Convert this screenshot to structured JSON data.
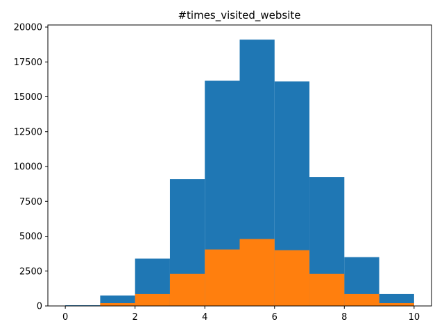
{
  "chart_data": {
    "type": "bar",
    "title": "#times_visited_website",
    "xlabel": "",
    "ylabel": "",
    "xlim": [
      -0.5,
      10.5
    ],
    "ylim": [
      0,
      20150
    ],
    "grid": false,
    "bin_edges": [
      0,
      1,
      2,
      3,
      4,
      5,
      6,
      7,
      8,
      9,
      10
    ],
    "series": [
      {
        "color": "#1f77b4",
        "values": [
          50,
          750,
          3400,
          9100,
          16150,
          19100,
          16100,
          9250,
          3500,
          850
        ]
      },
      {
        "color": "#ff7f0e",
        "values": [
          0,
          200,
          850,
          2300,
          4050,
          4800,
          4000,
          2300,
          850,
          200
        ]
      }
    ],
    "xticks": [
      0,
      2,
      4,
      6,
      8,
      10
    ],
    "xtick_labels": [
      "0",
      "2",
      "4",
      "6",
      "8",
      "10"
    ],
    "yticks": [
      0,
      2500,
      5000,
      7500,
      10000,
      12500,
      15000,
      17500,
      20000
    ],
    "ytick_labels": [
      "0",
      "2500",
      "5000",
      "7500",
      "10000",
      "12500",
      "15000",
      "17500",
      "20000"
    ]
  }
}
